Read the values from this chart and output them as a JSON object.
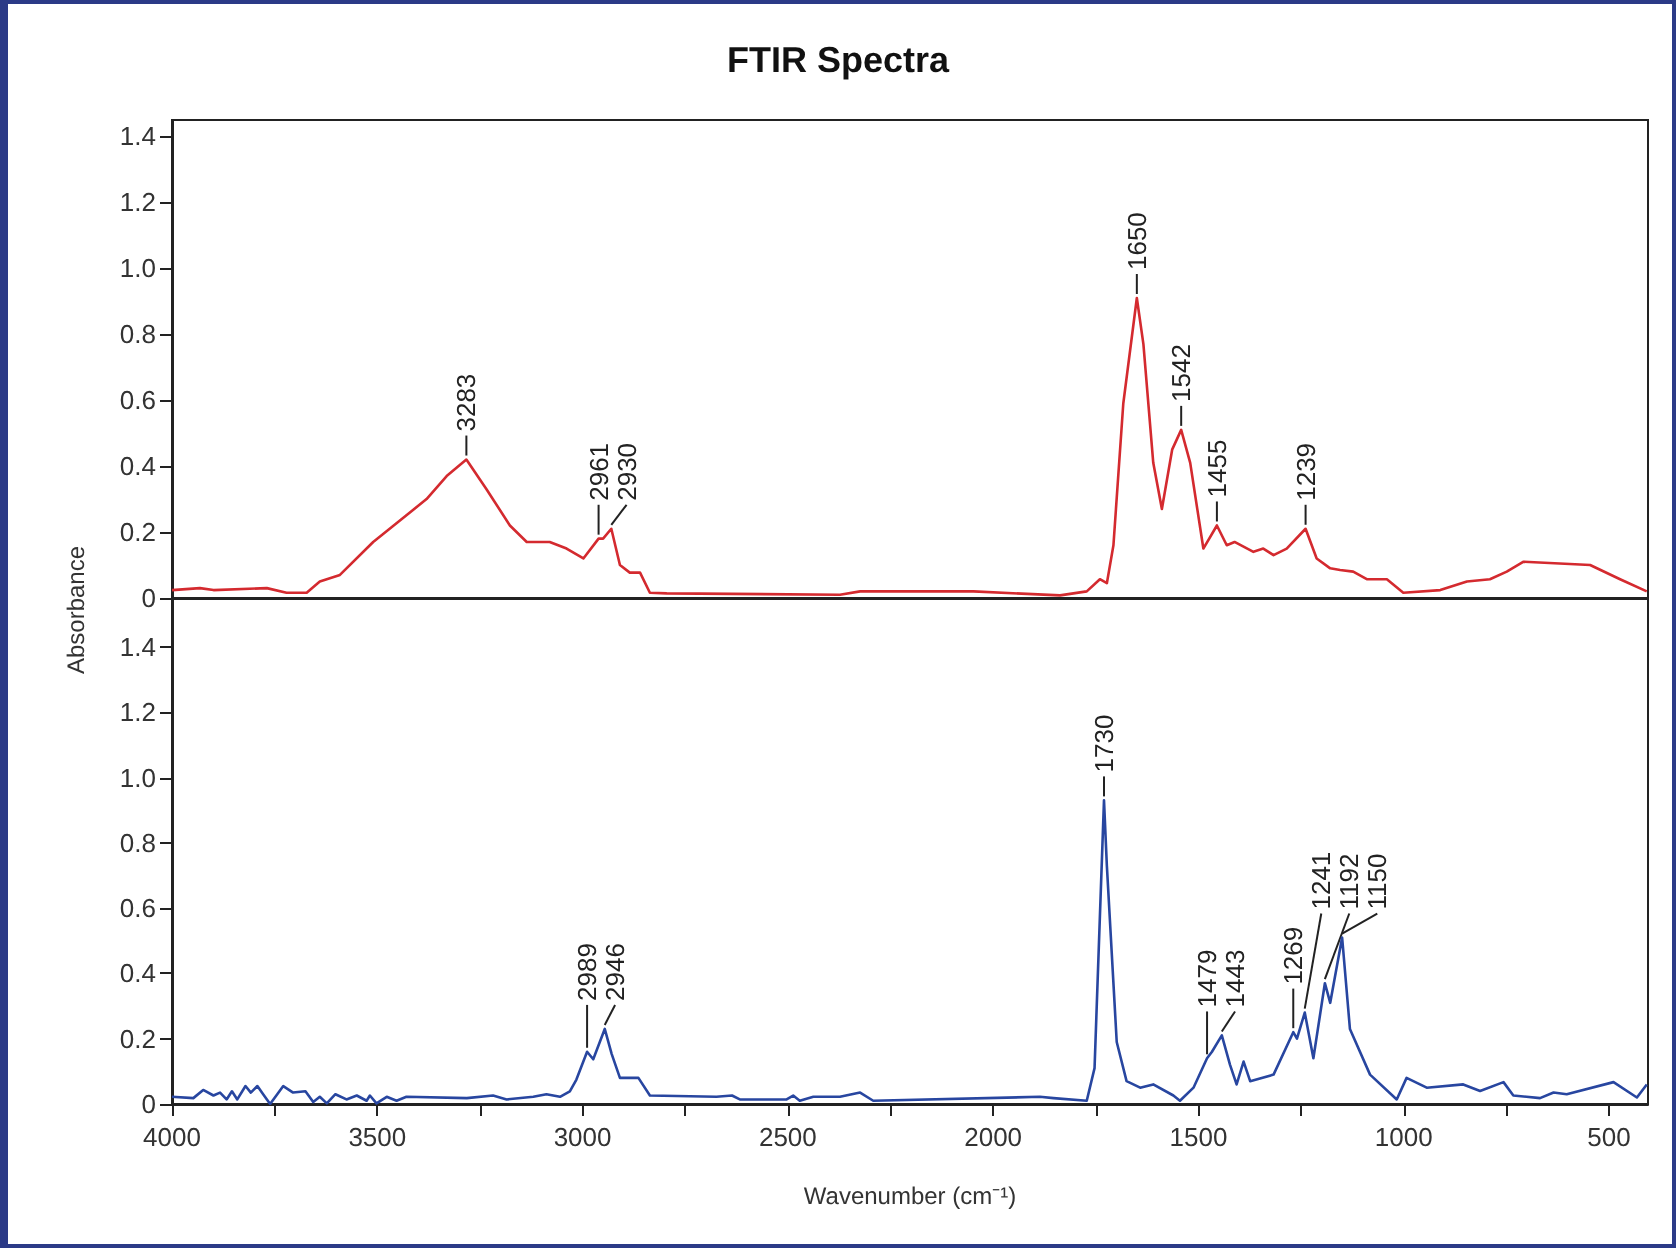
{
  "chart_data": [
    {
      "type": "line",
      "title": "FTIR Spectra",
      "ylabel": "Absorbance",
      "xlim": [
        4000,
        405
      ],
      "ylim": [
        0,
        1.45
      ],
      "yticks": [
        0,
        0.2,
        0.4,
        0.6,
        0.8,
        {
          "value": 1,
          "label": "1.0"
        },
        1.2,
        1.4
      ],
      "tick_labels": "y",
      "grid": false,
      "marker": "none",
      "series": [
        {
          "color": "#d42a2f",
          "x": [
            4000,
            3932,
            3899,
            3769,
            3721,
            3672,
            3640,
            3591,
            3510,
            3380,
            3331,
            3283,
            3234,
            3177,
            3136,
            3080,
            3039,
            2998,
            2961,
            2950,
            2930,
            2909,
            2885,
            2860,
            2836,
            2795,
            2373,
            2324,
            2048,
            1837,
            1772,
            1740,
            1723,
            1707,
            1683,
            1650,
            1634,
            1610,
            1589,
            1564,
            1542,
            1520,
            1488,
            1455,
            1431,
            1412,
            1366,
            1342,
            1317,
            1285,
            1239,
            1212,
            1179,
            1155,
            1123,
            1090,
            1041,
            1001,
            911,
            846,
            790,
            749,
            708,
            546,
            473,
            408
          ],
          "values": [
            0.024,
            0.03,
            0.024,
            0.03,
            0.016,
            0.016,
            0.05,
            0.07,
            0.17,
            0.3,
            0.37,
            0.42,
            0.33,
            0.22,
            0.17,
            0.17,
            0.15,
            0.12,
            0.18,
            0.18,
            0.21,
            0.1,
            0.077,
            0.077,
            0.016,
            0.014,
            0.01,
            0.02,
            0.02,
            0.008,
            0.02,
            0.057,
            0.045,
            0.16,
            0.59,
            0.91,
            0.77,
            0.41,
            0.27,
            0.45,
            0.51,
            0.41,
            0.15,
            0.22,
            0.16,
            0.17,
            0.14,
            0.15,
            0.13,
            0.15,
            0.21,
            0.12,
            0.09,
            0.085,
            0.08,
            0.057,
            0.057,
            0.016,
            0.024,
            0.05,
            0.057,
            0.08,
            0.11,
            0.1,
            0.057,
            0.02
          ]
        }
      ],
      "annotations": [
        {
          "text": "3283",
          "x": 3283,
          "y": 0.42
        },
        {
          "text": "2961",
          "x": 2961,
          "y": 0.18
        },
        {
          "text": "2930",
          "x": 2930,
          "y": 0.21
        },
        {
          "text": "1650",
          "x": 1650,
          "y": 0.91
        },
        {
          "text": "1542",
          "x": 1542,
          "y": 0.51
        },
        {
          "text": "1455",
          "x": 1455,
          "y": 0.22
        },
        {
          "text": "1239",
          "x": 1239,
          "y": 0.21
        }
      ]
    },
    {
      "type": "line",
      "xlabel": "Wavenumber (cm⁻¹)",
      "xlim": [
        4000,
        405
      ],
      "ylim": [
        0,
        1.55
      ],
      "xticks": [
        4000,
        {
          "value": 3750,
          "label": null
        },
        3500,
        {
          "value": 3250,
          "label": null
        },
        3000,
        {
          "value": 2750,
          "label": null
        },
        2500,
        {
          "value": 2250,
          "label": null
        },
        2000,
        {
          "value": 1750,
          "label": null
        },
        1500,
        {
          "value": 1250,
          "label": null
        },
        1000,
        {
          "value": 750,
          "label": null
        },
        500
      ],
      "yticks": [
        0,
        0.2,
        0.4,
        0.6,
        0.8,
        {
          "value": 1,
          "label": "1.0"
        },
        1.2,
        1.4
      ],
      "grid": false,
      "marker": "none",
      "series": [
        {
          "color": "#2846a0",
          "x": [
            4000,
            3948,
            3924,
            3899,
            3883,
            3867,
            3854,
            3841,
            3821,
            3808,
            3792,
            3778,
            3761,
            3729,
            3705,
            3675,
            3656,
            3640,
            3623,
            3602,
            3575,
            3550,
            3526,
            3518,
            3502,
            3477,
            3453,
            3429,
            3282,
            3218,
            3185,
            3120,
            3088,
            3055,
            3031,
            3015,
            2989,
            2974,
            2946,
            2929,
            2909,
            2864,
            2836,
            2674,
            2636,
            2617,
            2503,
            2487,
            2471,
            2438,
            2373,
            2324,
            2292,
            1886,
            1853,
            1772,
            1753,
            1730,
            1723,
            1699,
            1675,
            1642,
            1610,
            1561,
            1545,
            1512,
            1479,
            1467,
            1443,
            1423,
            1407,
            1390,
            1374,
            1317,
            1269,
            1260,
            1241,
            1220,
            1192,
            1179,
            1150,
            1131,
            1082,
            1017,
            993,
            944,
            855,
            814,
            757,
            733,
            668,
            635,
            603,
            489,
            432,
            408
          ],
          "values": [
            0.022,
            0.018,
            0.043,
            0.026,
            0.035,
            0.014,
            0.039,
            0.014,
            0.055,
            0.035,
            0.055,
            0.03,
            0.0,
            0.055,
            0.035,
            0.039,
            0.006,
            0.022,
            0.002,
            0.03,
            0.014,
            0.026,
            0.01,
            0.026,
            0.002,
            0.022,
            0.01,
            0.022,
            0.018,
            0.026,
            0.014,
            0.022,
            0.03,
            0.022,
            0.039,
            0.075,
            0.16,
            0.137,
            0.23,
            0.153,
            0.08,
            0.08,
            0.026,
            0.022,
            0.026,
            0.014,
            0.014,
            0.026,
            0.01,
            0.022,
            0.022,
            0.035,
            0.01,
            0.022,
            0.018,
            0.01,
            0.11,
            0.93,
            0.73,
            0.19,
            0.07,
            0.05,
            0.06,
            0.026,
            0.01,
            0.05,
            0.14,
            0.16,
            0.21,
            0.12,
            0.06,
            0.13,
            0.07,
            0.09,
            0.22,
            0.2,
            0.28,
            0.14,
            0.37,
            0.31,
            0.51,
            0.23,
            0.09,
            0.014,
            0.08,
            0.05,
            0.06,
            0.04,
            0.067,
            0.026,
            0.018,
            0.035,
            0.03,
            0.067,
            0.02,
            0.06
          ]
        }
      ],
      "annotations": [
        {
          "text": "2989",
          "x": 2989,
          "y": 0.16
        },
        {
          "text": "2946",
          "x": 2946,
          "y": 0.23
        },
        {
          "text": "1730",
          "x": 1730,
          "y": 0.93
        },
        {
          "text": "1479",
          "x": 1479,
          "y": 0.14
        },
        {
          "text": "1443",
          "x": 1443,
          "y": 0.21
        },
        {
          "text": "1269",
          "x": 1269,
          "y": 0.22
        },
        {
          "text": "1241",
          "x": 1241,
          "y": 0.28
        },
        {
          "text": "1192",
          "x": 1192,
          "y": 0.37
        },
        {
          "text": "1150",
          "x": 1150,
          "y": 0.51
        }
      ]
    }
  ]
}
